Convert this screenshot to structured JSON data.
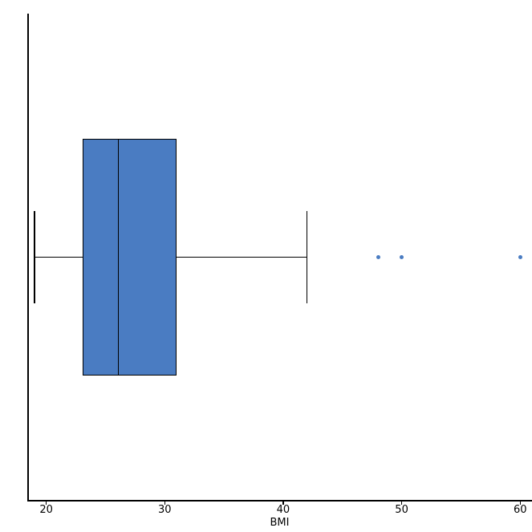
{
  "figure": {
    "background": "#ffffff",
    "line_color": "#000000"
  },
  "chart_data": {
    "type": "boxplot",
    "orientation": "horizontal",
    "title": "",
    "xlabel": "BMI",
    "ylabel": "",
    "xticks": [
      20,
      30,
      40,
      50,
      60
    ],
    "xlim": [
      18.4,
      61.0
    ],
    "grid": false,
    "legend": false,
    "box_color": "#4a7cc2",
    "line_color": "#000000",
    "series": [
      {
        "name": "BMI",
        "whisker_low": 19,
        "q1": 23.1,
        "median": 26.1,
        "q3": 31,
        "whisker_high": 42,
        "outliers": [
          48,
          50,
          60
        ]
      }
    ]
  }
}
